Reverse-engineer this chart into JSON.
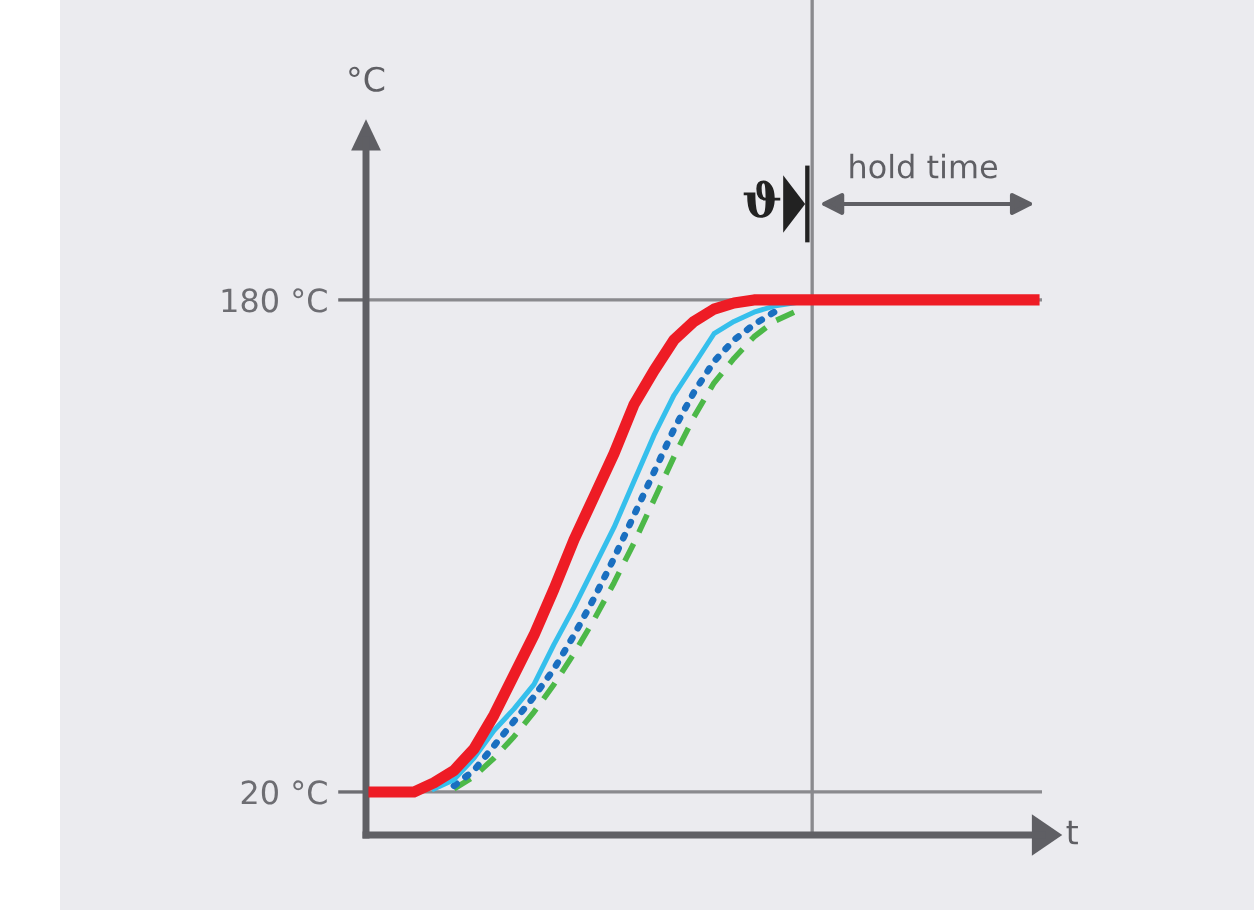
{
  "chart_data": {
    "type": "line",
    "categories": [
      null,
      null,
      null,
      null,
      null,
      null,
      null,
      null,
      null,
      null,
      null,
      null,
      null,
      null,
      null,
      null,
      null,
      null,
      null,
      null,
      null,
      null,
      null,
      null,
      null,
      null,
      null,
      null,
      null,
      null,
      null,
      null,
      null,
      null
    ],
    "ylabel": "°C",
    "xlabel": "t",
    "ylim": [
      6,
      232
    ],
    "yticks": [
      {
        "value": 20,
        "label": "20 °C"
      },
      {
        "value": 180,
        "label": "180 °C"
      }
    ],
    "tick_labels": "y",
    "series": [
      {
        "color": "#4cb848",
        "line_style": "dashed",
        "values": [
          null,
          null,
          null,
          null,
          21,
          25,
          31,
          38,
          46,
          55,
          65,
          76,
          88,
          101,
          115,
          129,
          142,
          153,
          161,
          168,
          173,
          176,
          null,
          null,
          null,
          null,
          null,
          null,
          null,
          null,
          null,
          null,
          null,
          null
        ]
      },
      {
        "color": "#1a6fc0",
        "line_style": "dotted",
        "values": [
          null,
          null,
          null,
          null,
          22,
          27,
          35,
          43,
          51,
          60,
          71,
          83,
          96,
          110,
          124,
          138,
          150,
          160,
          167,
          172,
          176,
          null,
          null,
          null,
          null,
          null,
          null,
          null,
          null,
          null,
          null,
          null,
          null,
          null
        ]
      },
      {
        "color": "#35bfec",
        "line_style": "solid",
        "values": [
          null,
          null,
          null,
          21,
          24,
          31,
          40,
          47,
          55,
          68,
          80,
          93,
          106,
          121,
          136,
          149,
          159,
          169,
          173,
          176,
          178,
          179,
          null,
          null,
          null,
          null,
          null,
          null,
          null,
          null,
          null,
          null,
          null,
          null
        ]
      },
      {
        "color": "#ee1c25",
        "line_style": "solid",
        "values": [
          20,
          20,
          20,
          23,
          27,
          34,
          45,
          58,
          71,
          86,
          102,
          116,
          130,
          146,
          157,
          167,
          173,
          177,
          179,
          180,
          180,
          180,
          180,
          180,
          180,
          180,
          180,
          180,
          180,
          180,
          180,
          180,
          180,
          180
        ]
      }
    ],
    "ref_lines": [
      {
        "axis": "y",
        "value": 20,
        "color": "#8a8a8e"
      },
      {
        "axis": "y",
        "value": 180,
        "color": "#8a8a8e"
      }
    ],
    "annotations": [
      "ϑ",
      "hold time"
    ]
  }
}
